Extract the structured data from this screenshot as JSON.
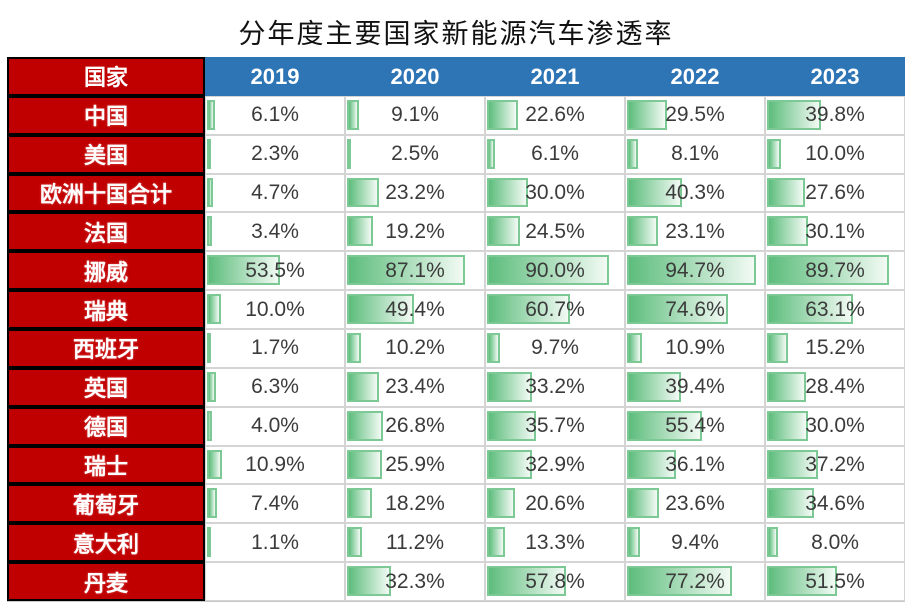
{
  "title": "分年度主要国家新能源汽车渗透率",
  "colors": {
    "header_red": "#C00000",
    "header_blue": "#2E75B6",
    "bar_green": "#5dbd7c",
    "bar_border": "#7dc996",
    "value_text": "#3b3b3b"
  },
  "chart_data": {
    "type": "table",
    "title": "分年度主要国家新能源汽车渗透率",
    "columns": [
      "国家",
      "2019",
      "2020",
      "2021",
      "2022",
      "2023"
    ],
    "unit": "%",
    "bar_scale_max": 100,
    "bar_style": "green-gradient-databar",
    "rows": [
      {
        "country": "中国",
        "values": [
          6.1,
          9.1,
          22.6,
          29.5,
          39.8
        ]
      },
      {
        "country": "美国",
        "values": [
          2.3,
          2.5,
          6.1,
          8.1,
          10.0
        ]
      },
      {
        "country": "欧洲十国合计",
        "values": [
          4.7,
          23.2,
          30.0,
          40.3,
          27.6
        ]
      },
      {
        "country": "法国",
        "values": [
          3.4,
          19.2,
          24.5,
          23.1,
          30.1
        ]
      },
      {
        "country": "挪威",
        "values": [
          53.5,
          87.1,
          90.0,
          94.7,
          89.7
        ]
      },
      {
        "country": "瑞典",
        "values": [
          10.0,
          49.4,
          60.7,
          74.6,
          63.1
        ]
      },
      {
        "country": "西班牙",
        "values": [
          1.7,
          10.2,
          9.7,
          10.9,
          15.2
        ]
      },
      {
        "country": "英国",
        "values": [
          6.3,
          23.4,
          33.2,
          39.4,
          28.4
        ]
      },
      {
        "country": "德国",
        "values": [
          4.0,
          26.8,
          35.7,
          55.4,
          30.0
        ]
      },
      {
        "country": "瑞士",
        "values": [
          10.9,
          25.9,
          32.9,
          36.1,
          37.2
        ]
      },
      {
        "country": "葡萄牙",
        "values": [
          7.4,
          18.2,
          20.6,
          23.6,
          34.6
        ]
      },
      {
        "country": "意大利",
        "values": [
          1.1,
          11.2,
          13.3,
          9.4,
          8.0
        ]
      },
      {
        "country": "丹麦",
        "values": [
          null,
          32.3,
          57.8,
          77.2,
          51.5
        ]
      }
    ]
  }
}
